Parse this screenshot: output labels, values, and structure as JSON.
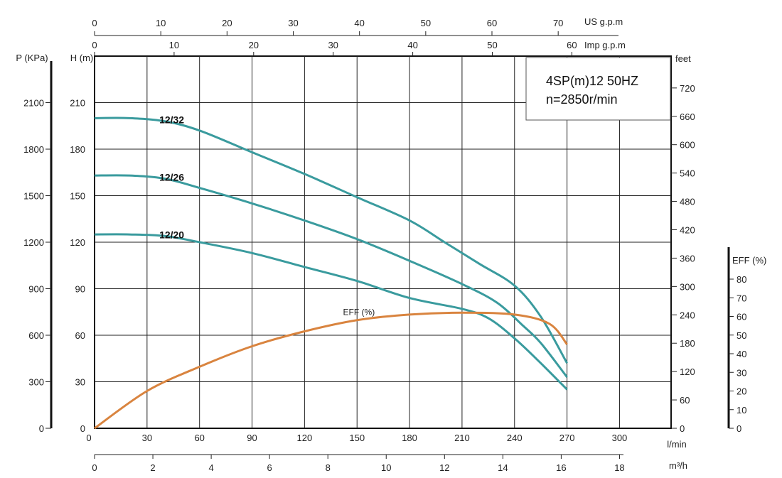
{
  "chart_data": {
    "type": "line",
    "title": "4SP(m)12  50HZ",
    "subtitle": "n=2850r/min",
    "xlim": [
      0,
      330
    ],
    "ylim": [
      0,
      225
    ],
    "grid": true,
    "primary_x": {
      "unit": "l/min",
      "ticks": [
        0,
        30,
        60,
        90,
        120,
        150,
        180,
        210,
        240,
        270,
        300
      ]
    },
    "secondary_axes": {
      "m3h": {
        "unit": "m³/h",
        "ticks": [
          0,
          2,
          4,
          6,
          8,
          10,
          12,
          14,
          16,
          18
        ]
      },
      "us_gpm": {
        "unit": "US g.p.m",
        "ticks": [
          0,
          10,
          20,
          30,
          40,
          50,
          60,
          70
        ]
      },
      "imp_gpm": {
        "unit": "Imp g.p.m",
        "ticks": [
          0,
          10,
          20,
          30,
          40,
          50,
          60
        ]
      },
      "head_m": {
        "unit": "H (m)",
        "ticks": [
          0,
          30,
          60,
          90,
          120,
          150,
          180,
          210
        ]
      },
      "pressure_kpa": {
        "unit": "P (KPa)",
        "ticks": [
          0,
          300,
          600,
          900,
          1200,
          1500,
          1800,
          2100
        ]
      },
      "feet": {
        "unit": "feet",
        "ticks": [
          0,
          60,
          120,
          180,
          240,
          300,
          360,
          420,
          480,
          540,
          600,
          660,
          720
        ]
      },
      "eff": {
        "unit": "EFF (%)",
        "ticks": [
          0,
          10,
          20,
          30,
          40,
          50,
          60,
          70,
          80
        ]
      }
    },
    "series": [
      {
        "name": "12/32",
        "color": "#3a9b9e",
        "points": [
          [
            0,
            200
          ],
          [
            20,
            200
          ],
          [
            40,
            198
          ],
          [
            60,
            192
          ],
          [
            90,
            178
          ],
          [
            120,
            164
          ],
          [
            150,
            149
          ],
          [
            180,
            134
          ],
          [
            200,
            120
          ],
          [
            220,
            106
          ],
          [
            240,
            92
          ],
          [
            255,
            72
          ],
          [
            270,
            42
          ]
        ]
      },
      {
        "name": "12/26",
        "color": "#3a9b9e",
        "points": [
          [
            0,
            163
          ],
          [
            20,
            163
          ],
          [
            40,
            161
          ],
          [
            60,
            155
          ],
          [
            90,
            145
          ],
          [
            120,
            134
          ],
          [
            150,
            122
          ],
          [
            180,
            108
          ],
          [
            210,
            93
          ],
          [
            230,
            81
          ],
          [
            245,
            66
          ],
          [
            255,
            55
          ],
          [
            270,
            33
          ]
        ]
      },
      {
        "name": "12/20",
        "color": "#3a9b9e",
        "points": [
          [
            0,
            125
          ],
          [
            20,
            125
          ],
          [
            40,
            124
          ],
          [
            60,
            120
          ],
          [
            90,
            113
          ],
          [
            120,
            104
          ],
          [
            150,
            95
          ],
          [
            180,
            84
          ],
          [
            210,
            77
          ],
          [
            225,
            71
          ],
          [
            240,
            58
          ],
          [
            255,
            42
          ],
          [
            270,
            25
          ]
        ]
      },
      {
        "name": "EFF (%)",
        "axis": "eff",
        "color": "#d9843f",
        "points": [
          [
            0,
            0
          ],
          [
            30,
            20
          ],
          [
            60,
            33
          ],
          [
            90,
            44
          ],
          [
            120,
            52
          ],
          [
            150,
            58
          ],
          [
            180,
            61
          ],
          [
            210,
            62
          ],
          [
            240,
            61
          ],
          [
            260,
            56
          ],
          [
            270,
            45
          ]
        ]
      }
    ]
  }
}
